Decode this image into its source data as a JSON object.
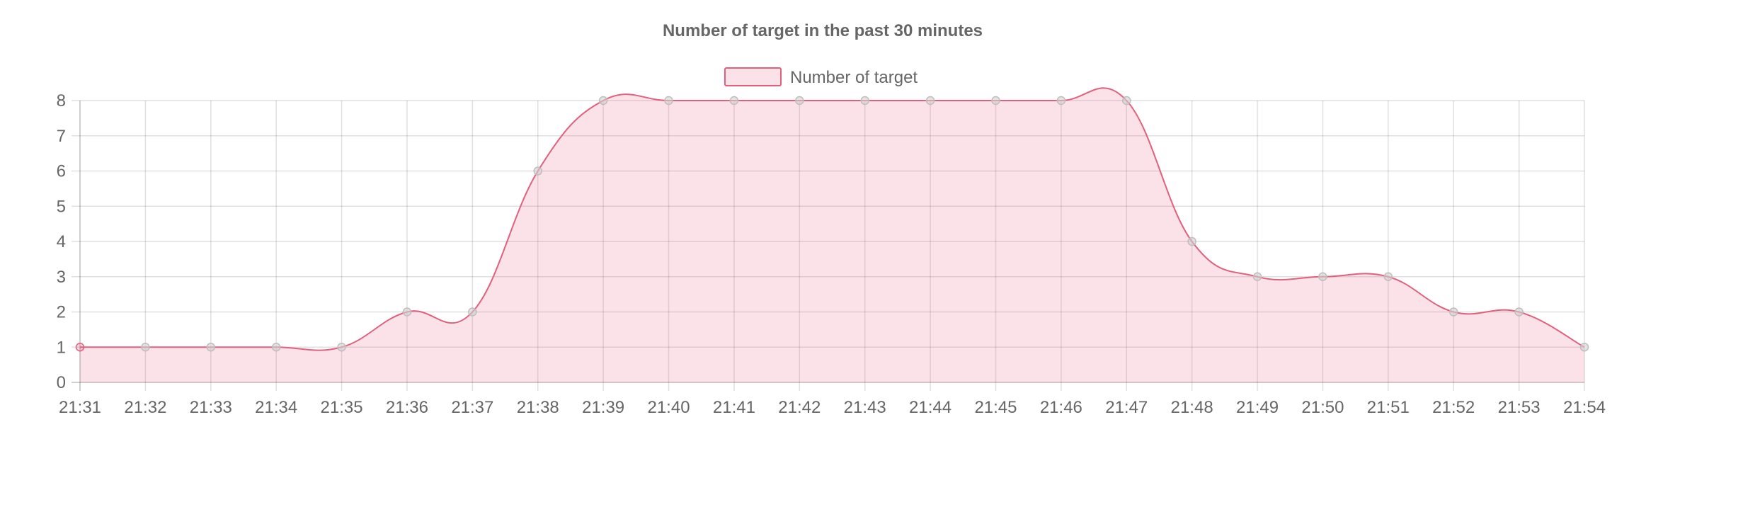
{
  "chart_data": {
    "type": "area",
    "title": "Number of target in the past 30 minutes",
    "xlabel": "",
    "ylabel": "",
    "categories": [
      "21:31",
      "21:32",
      "21:33",
      "21:34",
      "21:35",
      "21:36",
      "21:37",
      "21:38",
      "21:39",
      "21:40",
      "21:41",
      "21:42",
      "21:43",
      "21:44",
      "21:45",
      "21:46",
      "21:47",
      "21:48",
      "21:49",
      "21:50",
      "21:51",
      "21:52",
      "21:53",
      "21:54"
    ],
    "series": [
      {
        "name": "Number of target",
        "values": [
          1,
          1,
          1,
          1,
          1,
          2,
          2,
          6,
          8,
          8,
          8,
          8,
          8,
          8,
          8,
          8,
          8,
          4,
          3,
          3,
          3,
          2,
          2,
          1
        ]
      }
    ],
    "ylim": [
      0,
      8
    ],
    "yticks": [
      "0",
      "1",
      "2",
      "3",
      "4",
      "5",
      "6",
      "7",
      "8"
    ],
    "grid": true,
    "legend": "top-center",
    "colors": {
      "line": "#e0607e",
      "fill": "rgba(232, 96, 126, 0.18)",
      "point_border": "#bdbdbd",
      "point_fill": "rgba(210, 210, 210, 0.6)"
    }
  }
}
